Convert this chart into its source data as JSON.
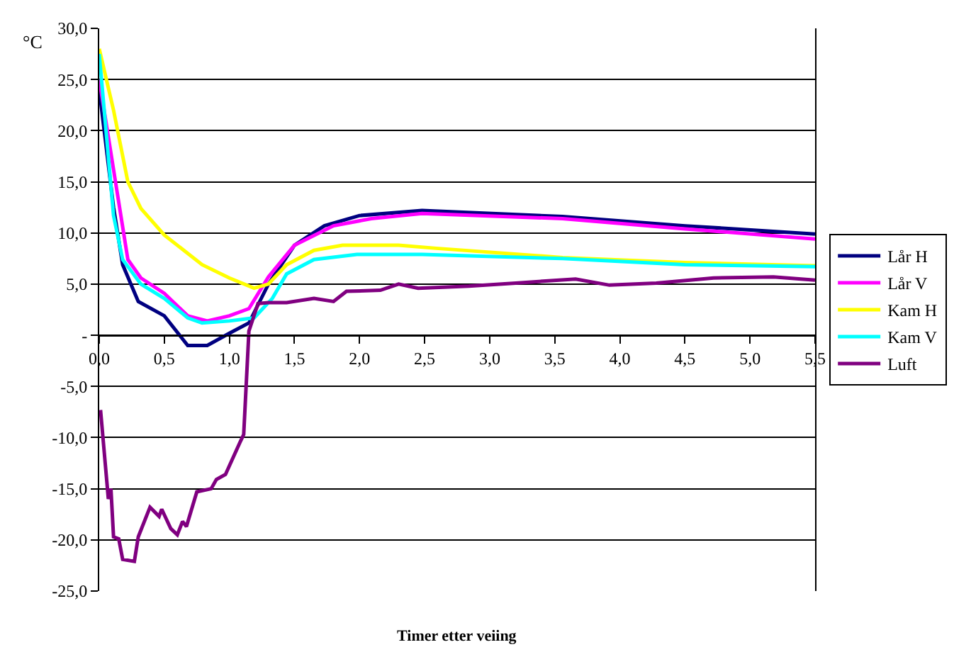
{
  "chart_data": {
    "type": "line",
    "xlabel": "Timer etter veiing",
    "ylabel": "°C",
    "xlim": [
      0,
      5.5
    ],
    "ylim": [
      -25,
      30
    ],
    "xticks": [
      {
        "value": 0,
        "label": "0,0"
      },
      {
        "value": 0.5,
        "label": "0,5"
      },
      {
        "value": 1,
        "label": "1,0"
      },
      {
        "value": 1.5,
        "label": "1,5"
      },
      {
        "value": 2,
        "label": "2,0"
      },
      {
        "value": 2.5,
        "label": "2,5"
      },
      {
        "value": 3,
        "label": "3,0"
      },
      {
        "value": 3.5,
        "label": "3,5"
      },
      {
        "value": 4,
        "label": "4,0"
      },
      {
        "value": 4.5,
        "label": "4,5"
      },
      {
        "value": 5,
        "label": "5,0"
      },
      {
        "value": 5.5,
        "label": "5,5"
      }
    ],
    "yticks": [
      {
        "value": -25,
        "label": "-25,0"
      },
      {
        "value": -20,
        "label": "-20,0"
      },
      {
        "value": -15,
        "label": "-15,0"
      },
      {
        "value": -10,
        "label": "-10,0"
      },
      {
        "value": -5,
        "label": "-5,0"
      },
      {
        "value": 0,
        "label": "-"
      },
      {
        "value": 5,
        "label": "5,0"
      },
      {
        "value": 10,
        "label": "10,0"
      },
      {
        "value": 15,
        "label": "15,0"
      },
      {
        "value": 20,
        "label": "20,0"
      },
      {
        "value": 25,
        "label": "25,0"
      },
      {
        "value": 30,
        "label": "30,0"
      }
    ],
    "grid": "y",
    "legend": "right",
    "marker": "none",
    "line_style": "solid",
    "series": [
      {
        "name": "Lår H",
        "color": "#000080",
        "x": [
          0,
          0.11,
          0.18,
          0.3,
          0.5,
          0.68,
          0.83,
          1.0,
          1.15,
          1.3,
          1.5,
          1.73,
          2.0,
          2.48,
          3.56,
          4.5,
          5.5
        ],
        "values": [
          24,
          12.5,
          6.9,
          3.3,
          1.9,
          -1,
          -1,
          0.2,
          1.2,
          5,
          8.8,
          10.7,
          11.7,
          12.2,
          11.6,
          10.7,
          9.9
        ]
      },
      {
        "name": "Lår V",
        "color": "#ff00ff",
        "x": [
          0,
          0.22,
          0.32,
          0.5,
          0.68,
          0.83,
          1.0,
          1.15,
          1.3,
          1.5,
          1.8,
          2.09,
          2.48,
          3.56,
          4.5,
          5.5
        ],
        "values": [
          25,
          7.4,
          5.6,
          4.1,
          1.9,
          1.4,
          1.9,
          2.6,
          5.7,
          8.8,
          10.7,
          11.4,
          11.9,
          11.4,
          10.4,
          9.4
        ]
      },
      {
        "name": "Kam H",
        "color": "#ffff00",
        "x": [
          0,
          0.11,
          0.22,
          0.32,
          0.5,
          0.79,
          1.0,
          1.19,
          1.3,
          1.44,
          1.65,
          1.87,
          2.3,
          2.59,
          3.56,
          4.5,
          5.5
        ],
        "values": [
          28,
          22,
          15,
          12.4,
          9.8,
          6.9,
          5.6,
          4.6,
          5,
          6.9,
          8.3,
          8.8,
          8.8,
          8.5,
          7.6,
          7.1,
          6.8
        ]
      },
      {
        "name": "Kam V",
        "color": "#00ffff",
        "x": [
          0,
          0.11,
          0.18,
          0.32,
          0.5,
          0.68,
          0.79,
          1.0,
          1.19,
          1.33,
          1.44,
          1.65,
          1.98,
          2.48,
          3.56,
          4.5,
          5.5
        ],
        "values": [
          27.5,
          11.7,
          7.4,
          5,
          3.6,
          1.7,
          1.2,
          1.4,
          1.7,
          3.6,
          6,
          7.4,
          7.9,
          7.9,
          7.5,
          6.9,
          6.7
        ]
      },
      {
        "name": "Luft",
        "color": "#800080",
        "x": [
          0.01,
          0.07,
          0.09,
          0.11,
          0.15,
          0.18,
          0.27,
          0.3,
          0.39,
          0.46,
          0.48,
          0.55,
          0.6,
          0.64,
          0.67,
          0.75,
          0.86,
          0.9,
          0.97,
          1.08,
          1.11,
          1.15,
          1.22,
          1.3,
          1.44,
          1.65,
          1.8,
          1.9,
          2.16,
          2.3,
          2.45,
          2.84,
          3.2,
          3.66,
          3.92,
          4.28,
          4.72,
          5.18,
          5.5
        ],
        "values": [
          -7.3,
          -16,
          -15,
          -19.7,
          -19.9,
          -21.9,
          -22.1,
          -19.7,
          -16.8,
          -17.7,
          -17,
          -18.9,
          -19.5,
          -18.2,
          -18.7,
          -15.3,
          -15,
          -14.1,
          -13.6,
          -10.5,
          -9.7,
          0.4,
          3.1,
          3.2,
          3.2,
          3.6,
          3.3,
          4.3,
          4.4,
          5,
          4.6,
          4.8,
          5.1,
          5.5,
          4.9,
          5.1,
          5.6,
          5.7,
          5.4
        ]
      }
    ]
  }
}
